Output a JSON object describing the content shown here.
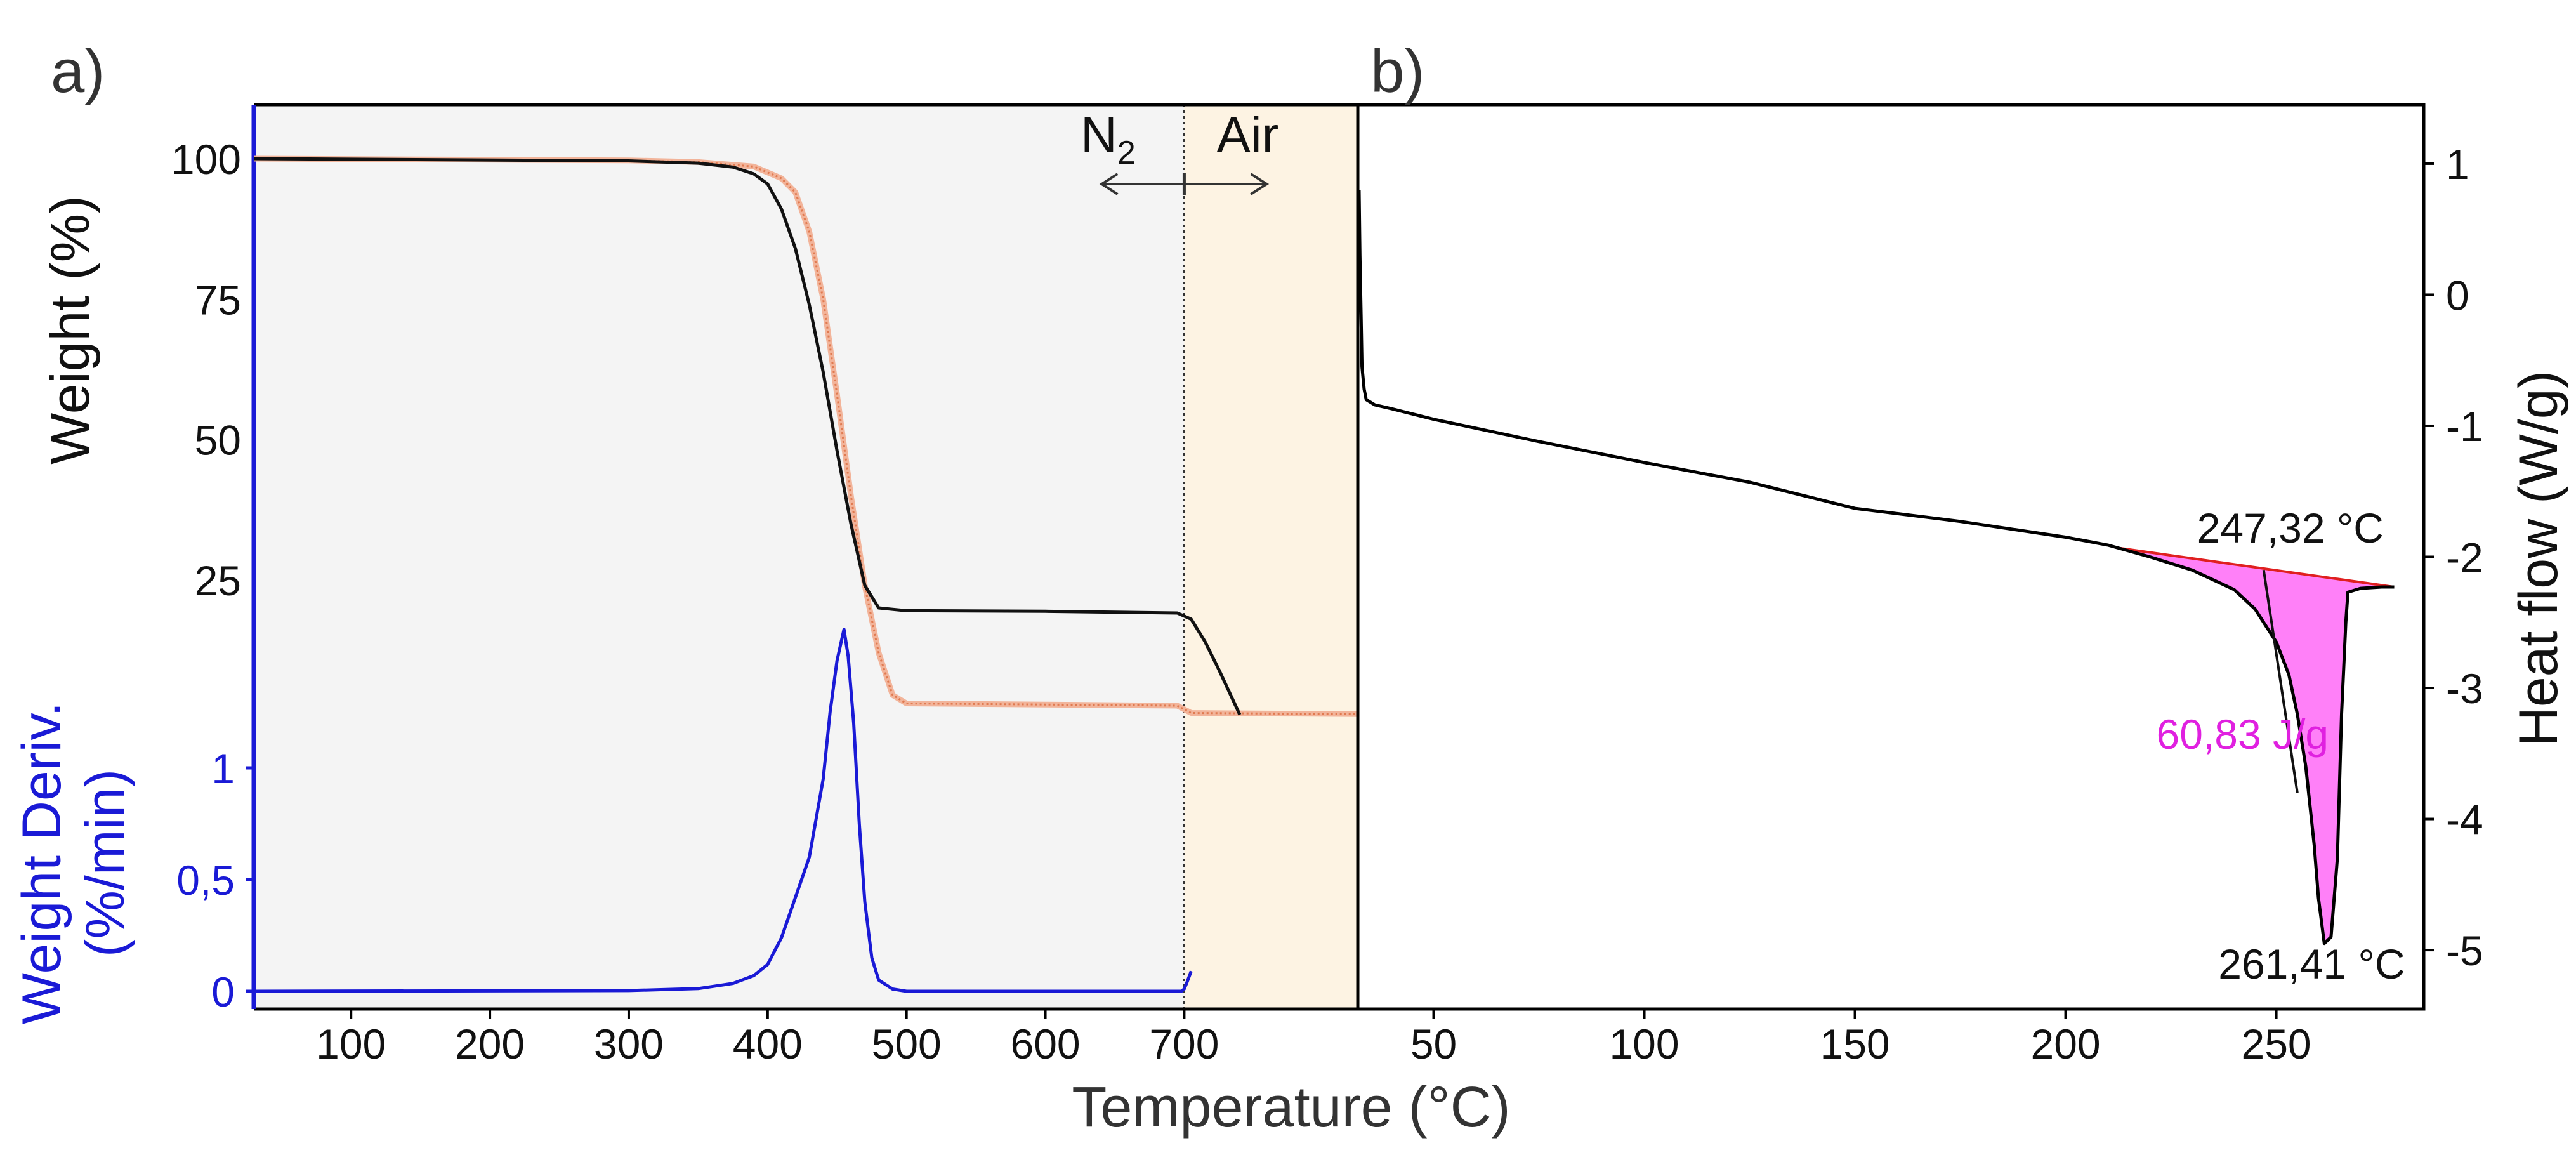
{
  "chart_data": [
    {
      "panel_label": "a)",
      "type": "line",
      "xlabel": "Temperature (°C)",
      "xlim": [
        30,
        825
      ],
      "xticks": [
        100,
        200,
        300,
        400,
        500,
        600,
        700
      ],
      "atmosphere_switch_x": 700,
      "regions": [
        {
          "name": "N2",
          "label_main": "N",
          "label_sub": "2",
          "range": [
            30,
            700
          ],
          "color": "#f4f4f4"
        },
        {
          "name": "Air",
          "label": "Air",
          "range": [
            700,
            825
          ],
          "color": "#fdf3e3"
        }
      ],
      "weight_axis": {
        "ylabel": "Weight (%)",
        "ticks": [
          25,
          50,
          75,
          100
        ],
        "series": [
          {
            "name": "weight-black",
            "color": "#111111",
            "x": [
              30,
              300,
              350,
              375,
              390,
              400,
              410,
              420,
              430,
              440,
              450,
              460,
              470,
              480,
              500,
              600,
              695,
              705,
              715,
              725,
              740
            ],
            "y": [
              100,
              99.6,
              99.2,
              98.5,
              97.3,
              95.5,
              91,
              84,
              74,
              62,
              48,
              35,
              24,
              20,
              19.5,
              19.4,
              19.1,
              18,
              14,
              9,
              1
            ]
          },
          {
            "name": "weight-orange",
            "color": "#e07a50",
            "x": [
              30,
              300,
              350,
              390,
              410,
              420,
              430,
              440,
              450,
              460,
              470,
              480,
              490,
              500,
              600,
              695,
              705,
              825
            ],
            "y": [
              100,
              99.7,
              99.4,
              98.6,
              96.5,
              94,
              87,
              75,
              58,
              40,
              24,
              12,
              4.5,
              3,
              2.8,
              2.6,
              1.3,
              1.1
            ]
          }
        ]
      },
      "deriv_axis": {
        "ylabel_line1": "Weight Deriv.",
        "ylabel_line2": "(%/min)",
        "ticks": [
          "0",
          "0,5",
          "1"
        ],
        "tick_values": [
          0,
          0.5,
          1
        ],
        "series": [
          {
            "name": "derivative-blue",
            "color": "#1a1ad6",
            "x": [
              30,
              300,
              350,
              375,
              390,
              400,
              410,
              420,
              430,
              440,
              445,
              450,
              455,
              458,
              462,
              466,
              470,
              475,
              480,
              490,
              500,
              600,
              698,
              700,
              702,
              705
            ],
            "y": [
              0,
              0.003,
              0.012,
              0.035,
              0.07,
              0.12,
              0.24,
              0.42,
              0.6,
              0.95,
              1.25,
              1.48,
              1.62,
              1.5,
              1.2,
              0.75,
              0.4,
              0.15,
              0.05,
              0.01,
              0,
              0,
              0,
              0.01,
              0.04,
              0.09
            ]
          }
        ]
      }
    },
    {
      "panel_label": "b)",
      "type": "line",
      "xlim": [
        32,
        285
      ],
      "xticks": [
        50,
        100,
        150,
        200,
        250
      ],
      "ylabel": "Heat flow (W/g)",
      "ylim": [
        -5.45,
        1.45
      ],
      "yticks": [
        1,
        0,
        -1,
        -2,
        -3,
        -4,
        -5
      ],
      "series": [
        {
          "name": "heat-flow",
          "color": "#000000",
          "x": [
            32.3,
            32.5,
            32.8,
            33.0,
            33.5,
            34,
            36,
            40,
            50,
            75,
            100,
            125,
            150,
            175,
            200,
            210,
            220,
            230,
            240,
            245,
            250,
            253,
            255,
            257,
            259,
            260,
            261.4,
            263,
            264.5,
            265.5,
            266.5,
            267,
            270,
            275,
            278
          ],
          "y": [
            0.8,
            0.3,
            -0.2,
            -0.55,
            -0.72,
            -0.8,
            -0.84,
            -0.87,
            -0.95,
            -1.12,
            -1.28,
            -1.43,
            -1.63,
            -1.73,
            -1.85,
            -1.91,
            -2.0,
            -2.1,
            -2.25,
            -2.4,
            -2.65,
            -2.9,
            -3.2,
            -3.6,
            -4.2,
            -4.6,
            -4.95,
            -4.9,
            -4.3,
            -3.2,
            -2.5,
            -2.27,
            -2.24,
            -2.23,
            -2.23
          ]
        }
      ],
      "baseline": {
        "color": "#e02020",
        "x": [
          212,
          278
        ],
        "y": [
          -1.93,
          -2.23
        ]
      },
      "peak_fill_color": "#ff80f8",
      "tangent": {
        "x": [
          247,
          255
        ],
        "y": [
          -2.1,
          -3.8
        ]
      },
      "annotations": [
        {
          "name": "onset-label",
          "text": "247,32 °C",
          "x": 247.32,
          "color": "#111111"
        },
        {
          "name": "peak-label",
          "text": "261,41 °C",
          "x": 261.41,
          "color": "#111111"
        },
        {
          "name": "enthalpy-label",
          "text": "60,83 J/g",
          "color": "#e020e0"
        }
      ]
    }
  ]
}
